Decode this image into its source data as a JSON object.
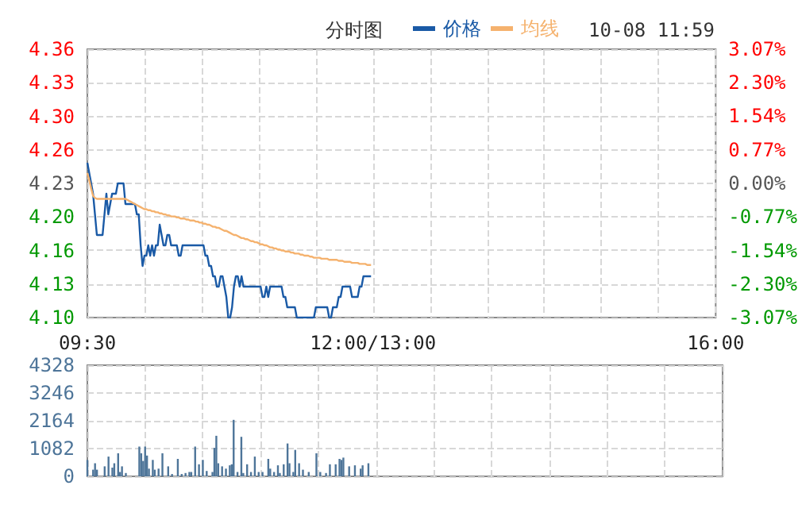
{
  "chart_data": [
    {
      "type": "line",
      "title": "分时图",
      "annotations": [
        "10-08 11:59"
      ],
      "legend": "top",
      "grid": true,
      "categories": [
        "09:30",
        null,
        null,
        null,
        null,
        null,
        null,
        null,
        null,
        null,
        null,
        null,
        null,
        null,
        null,
        null,
        null,
        null,
        null,
        null,
        null,
        null,
        null,
        null,
        null,
        null,
        null,
        null,
        null,
        null,
        null,
        null,
        null,
        null,
        null,
        null,
        null,
        null,
        null,
        null,
        null,
        null,
        null,
        null,
        null,
        null,
        null,
        null,
        null,
        null,
        null,
        null,
        null,
        null,
        null,
        null,
        null,
        null,
        null,
        null,
        null,
        null,
        null,
        null,
        null,
        null,
        null,
        null,
        null,
        null,
        null,
        null,
        null,
        null,
        null,
        null,
        null,
        null,
        null,
        null,
        null,
        null,
        null,
        null,
        null,
        null,
        null,
        null,
        null,
        null,
        null,
        null,
        null,
        null,
        null,
        null,
        null,
        null,
        null,
        null,
        null,
        null,
        null,
        null,
        null,
        null,
        null,
        null,
        null,
        null,
        null,
        null,
        null,
        null,
        null,
        null,
        null,
        null,
        null,
        null,
        null,
        null,
        null,
        null,
        null,
        null,
        null,
        null,
        null,
        null,
        null,
        null,
        null,
        null,
        null,
        null,
        null,
        null,
        null,
        null,
        null,
        null,
        null,
        null,
        null,
        null,
        null,
        null,
        null,
        null,
        "12:00/13:00",
        null,
        null,
        null,
        null,
        null,
        null,
        null,
        null,
        null,
        null,
        null,
        null,
        null,
        null,
        null,
        null,
        null,
        null,
        null,
        null,
        null,
        null,
        null,
        null,
        null,
        null,
        null,
        null,
        null,
        null,
        null,
        null,
        null,
        null,
        null,
        null,
        null,
        null,
        null,
        null,
        null,
        null,
        null,
        null,
        null,
        null,
        null,
        null,
        null,
        null,
        null,
        null,
        null,
        null,
        null,
        null,
        null,
        null,
        null,
        null,
        null,
        null,
        null,
        null,
        null,
        null,
        null,
        null,
        null,
        null,
        null,
        null,
        null,
        null,
        null,
        null,
        null,
        null,
        null,
        null,
        null,
        null,
        null,
        null,
        null,
        null,
        null,
        null,
        null,
        null,
        null,
        null,
        null,
        null,
        null,
        null,
        null,
        null,
        null,
        null,
        null,
        null,
        null,
        null,
        null,
        null,
        null,
        null,
        null,
        null,
        null,
        null,
        null,
        null,
        null,
        null,
        null,
        null,
        null,
        null,
        null,
        null,
        null,
        null,
        null,
        null,
        null,
        null,
        null,
        null,
        null,
        null,
        null,
        null,
        null,
        null,
        null,
        null,
        null,
        null,
        null,
        null,
        null,
        null,
        null,
        null,
        null,
        null,
        null,
        null,
        null,
        null,
        null,
        null,
        null,
        null,
        null,
        null,
        null,
        null,
        null,
        null,
        null,
        null,
        null,
        null,
        null,
        null,
        null,
        null,
        null,
        null,
        null,
        null,
        null,
        null,
        null,
        null,
        null,
        "16:00"
      ],
      "ylim": [
        4.1,
        4.36
      ],
      "yticks": [
        {
          "value": 4.1,
          "label": "4.10"
        },
        {
          "value": 4.1325,
          "label": "4.13"
        },
        {
          "value": 4.165,
          "label": "4.16"
        },
        {
          "value": 4.1975,
          "label": "4.20"
        },
        {
          "value": 4.23,
          "label": "4.23"
        },
        {
          "value": 4.2625,
          "label": "4.26"
        },
        {
          "value": 4.295,
          "label": "4.30"
        },
        {
          "value": 4.3275,
          "label": "4.33"
        },
        {
          "value": 4.36,
          "label": "4.36"
        }
      ],
      "y2lim": [
        -3.07,
        3.07
      ],
      "y2ticks": [
        {
          "value": -3.07,
          "label": "-3.07%"
        },
        {
          "value": -2.3,
          "label": "-2.30%"
        },
        {
          "value": -1.54,
          "label": "-1.54%"
        },
        {
          "value": -0.77,
          "label": "-0.77%"
        },
        {
          "value": 0,
          "label": "0.00%"
        },
        {
          "value": 0.77,
          "label": "0.77%"
        },
        {
          "value": 1.54,
          "label": "1.54%"
        },
        {
          "value": 2.3,
          "label": "2.30%"
        },
        {
          "value": 3.07,
          "label": "3.07%"
        }
      ],
      "series": [
        {
          "name": "价格",
          "color": "#1a5aa6",
          "values": [
            4.25,
            4.24,
            4.23,
            4.22,
            4.2,
            4.18,
            4.18,
            4.18,
            4.18,
            4.2,
            4.22,
            4.2,
            4.21,
            4.22,
            4.22,
            4.22,
            4.23,
            4.23,
            4.23,
            4.23,
            4.21,
            4.21,
            4.21,
            4.21,
            4.21,
            4.21,
            4.2,
            4.2,
            4.17,
            4.15,
            4.16,
            4.16,
            4.17,
            4.16,
            4.17,
            4.16,
            4.17,
            4.17,
            4.19,
            4.18,
            4.17,
            4.17,
            4.18,
            4.18,
            4.17,
            4.17,
            4.17,
            4.17,
            4.16,
            4.16,
            4.17,
            4.17,
            4.17,
            4.17,
            4.17,
            4.17,
            4.17,
            4.17,
            4.17,
            4.17,
            4.17,
            4.17,
            4.16,
            4.16,
            4.15,
            4.15,
            4.14,
            4.14,
            4.13,
            4.13,
            4.14,
            4.14,
            4.13,
            4.12,
            4.1,
            4.1,
            4.11,
            4.13,
            4.14,
            4.14,
            4.13,
            4.14,
            4.13,
            4.13,
            4.13,
            4.13,
            4.13,
            4.13,
            4.13,
            4.13,
            4.13,
            4.13,
            4.12,
            4.12,
            4.13,
            4.12,
            4.13,
            4.13,
            4.13,
            4.13,
            4.13,
            4.13,
            4.13,
            4.12,
            4.12,
            4.11,
            4.11,
            4.11,
            4.11,
            4.11,
            4.1,
            4.1,
            4.1,
            4.1,
            4.1,
            4.1,
            4.1,
            4.1,
            4.1,
            4.1,
            4.11,
            4.11,
            4.11,
            4.11,
            4.11,
            4.11,
            4.11,
            4.1,
            4.1,
            4.11,
            4.11,
            4.11,
            4.12,
            4.12,
            4.13,
            4.13,
            4.13,
            4.13,
            4.13,
            4.12,
            4.12,
            4.12,
            4.12,
            4.13,
            4.13,
            4.14,
            4.14,
            4.14,
            4.14,
            4.14,
            null,
            null,
            null,
            null,
            null,
            null,
            null,
            null,
            null,
            null,
            null,
            null,
            null,
            null,
            null,
            null,
            null,
            null,
            null,
            null,
            null,
            null,
            null,
            null,
            null,
            null,
            null,
            null,
            null,
            null,
            null,
            null,
            null,
            null,
            null,
            null,
            null,
            null,
            null,
            null,
            null,
            null,
            null,
            null,
            null,
            null,
            null,
            null,
            null,
            null,
            null,
            null,
            null,
            null,
            null,
            null,
            null,
            null,
            null,
            null,
            null,
            null,
            null,
            null,
            null,
            null,
            null,
            null,
            null,
            null,
            null,
            null,
            null,
            null,
            null,
            null,
            null,
            null,
            null,
            null,
            null,
            null,
            null,
            null,
            null,
            null,
            null,
            null,
            null,
            null,
            null,
            null,
            null,
            null,
            null,
            null,
            null,
            null,
            null,
            null,
            null,
            null,
            null,
            null,
            null,
            null,
            null,
            null,
            null,
            null,
            null,
            null,
            null,
            null,
            null,
            null,
            null,
            null,
            null,
            null,
            null,
            null,
            null,
            null,
            null,
            null,
            null,
            null,
            null,
            null,
            null,
            null,
            null,
            null,
            null,
            null,
            null,
            null,
            null,
            null,
            null,
            null,
            null,
            null,
            null,
            null,
            null,
            null,
            null,
            null,
            null,
            null,
            null,
            null,
            null,
            null,
            null,
            null,
            null,
            null,
            null,
            null,
            null,
            null,
            null,
            null,
            null,
            null,
            null,
            null,
            null,
            null,
            null,
            null,
            null,
            null,
            null,
            null,
            null,
            null,
            null
          ]
        },
        {
          "name": "均线",
          "color": "#f5b26e",
          "values": [
            4.24,
            4.233,
            4.225,
            4.218,
            4.216,
            4.215,
            4.215,
            4.215,
            4.215,
            4.215,
            4.215,
            4.215,
            4.215,
            4.215,
            4.215,
            4.215,
            4.215,
            4.215,
            4.215,
            4.215,
            4.215,
            4.214,
            4.213,
            4.212,
            4.211,
            4.21,
            4.209,
            4.208,
            4.207,
            4.206,
            4.205,
            4.205,
            4.204,
            4.204,
            4.203,
            4.203,
            4.202,
            4.202,
            4.201,
            4.201,
            4.2,
            4.2,
            4.199,
            4.199,
            4.198,
            4.198,
            4.198,
            4.197,
            4.197,
            4.196,
            4.196,
            4.196,
            4.195,
            4.195,
            4.194,
            4.194,
            4.194,
            4.193,
            4.193,
            4.192,
            4.192,
            4.191,
            4.191,
            4.19,
            4.19,
            4.189,
            4.188,
            4.188,
            4.187,
            4.187,
            4.186,
            4.185,
            4.184,
            4.184,
            4.183,
            4.182,
            4.181,
            4.18,
            4.18,
            4.179,
            4.178,
            4.177,
            4.177,
            4.176,
            4.176,
            4.175,
            4.174,
            4.174,
            4.173,
            4.173,
            4.172,
            4.171,
            4.171,
            4.17,
            4.17,
            4.169,
            4.168,
            4.168,
            4.167,
            4.167,
            4.166,
            4.166,
            4.165,
            4.165,
            4.164,
            4.164,
            4.164,
            4.163,
            4.163,
            4.162,
            4.162,
            4.162,
            4.161,
            4.161,
            4.16,
            4.16,
            4.16,
            4.159,
            4.159,
            4.158,
            4.158,
            4.158,
            4.158,
            4.157,
            4.157,
            4.157,
            4.157,
            4.156,
            4.156,
            4.156,
            4.156,
            4.156,
            4.155,
            4.155,
            4.155,
            4.154,
            4.154,
            4.154,
            4.154,
            4.153,
            4.153,
            4.153,
            4.153,
            4.152,
            4.152,
            4.152,
            4.152,
            4.151,
            4.151,
            4.151,
            null,
            null,
            null,
            null,
            null,
            null,
            null,
            null,
            null,
            null,
            null,
            null,
            null,
            null,
            null,
            null,
            null,
            null,
            null,
            null,
            null,
            null,
            null,
            null,
            null,
            null,
            null,
            null,
            null,
            null,
            null,
            null,
            null,
            null,
            null,
            null,
            null,
            null,
            null,
            null,
            null,
            null,
            null,
            null,
            null,
            null,
            null,
            null,
            null,
            null,
            null,
            null,
            null,
            null,
            null,
            null,
            null,
            null,
            null,
            null,
            null,
            null,
            null,
            null,
            null,
            null,
            null,
            null,
            null,
            null,
            null,
            null,
            null,
            null,
            null,
            null,
            null,
            null,
            null,
            null,
            null,
            null,
            null,
            null,
            null,
            null,
            null,
            null,
            null,
            null,
            null,
            null,
            null,
            null,
            null,
            null,
            null,
            null,
            null,
            null,
            null,
            null,
            null,
            null,
            null,
            null,
            null,
            null,
            null,
            null,
            null,
            null,
            null,
            null,
            null,
            null,
            null,
            null,
            null,
            null,
            null,
            null,
            null,
            null,
            null,
            null,
            null,
            null,
            null,
            null,
            null,
            null,
            null,
            null,
            null,
            null,
            null,
            null,
            null,
            null,
            null,
            null,
            null,
            null,
            null,
            null,
            null,
            null,
            null,
            null,
            null,
            null,
            null,
            null,
            null,
            null,
            null,
            null,
            null,
            null,
            null,
            null,
            null,
            null,
            null,
            null,
            null,
            null,
            null,
            null,
            null,
            null,
            null,
            null,
            null,
            null,
            null,
            null,
            null,
            null,
            null
          ]
        }
      ]
    },
    {
      "type": "bar",
      "tick_labels": "y",
      "grid": true,
      "categories": [
        null,
        null,
        null,
        null,
        null,
        null,
        null,
        null,
        null,
        null,
        null,
        null,
        null,
        null,
        null,
        null,
        null,
        null,
        null,
        null,
        null,
        null,
        null,
        null,
        null,
        null,
        null,
        null,
        null,
        null,
        null,
        null,
        null,
        null,
        null,
        null,
        null,
        null,
        null,
        null,
        null,
        null,
        null,
        null,
        null,
        null,
        null,
        null,
        null,
        null,
        null,
        null,
        null,
        null,
        null,
        null,
        null,
        null,
        null,
        null,
        null,
        null,
        null,
        null,
        null,
        null,
        null,
        null,
        null,
        null,
        null,
        null,
        null,
        null,
        null,
        null,
        null,
        null,
        null,
        null,
        null,
        null,
        null,
        null,
        null,
        null,
        null,
        null,
        null,
        null,
        null,
        null,
        null,
        null,
        null,
        null,
        null,
        null,
        null,
        null,
        null,
        null,
        null,
        null,
        null,
        null,
        null,
        null,
        null,
        null,
        null,
        null,
        null,
        null,
        null,
        null,
        null,
        null,
        null,
        null,
        null,
        null,
        null,
        null,
        null,
        null,
        null,
        null,
        null,
        null,
        null,
        null,
        null,
        null,
        null,
        null,
        null,
        null,
        null,
        null,
        null,
        null,
        null,
        null,
        null,
        null,
        null,
        null,
        null,
        null,
        null,
        null,
        null,
        null,
        null,
        null,
        null,
        null,
        null,
        null,
        null,
        null,
        null,
        null,
        null,
        null,
        null,
        null,
        null,
        null,
        null,
        null,
        null,
        null,
        null,
        null,
        null,
        null,
        null,
        null,
        null,
        null,
        null,
        null,
        null,
        null,
        null,
        null,
        null,
        null,
        null,
        null,
        null,
        null,
        null,
        null,
        null,
        null,
        null,
        null,
        null,
        null,
        null,
        null,
        null,
        null,
        null,
        null,
        null,
        null,
        null,
        null,
        null,
        null,
        null,
        null,
        null,
        null,
        null,
        null,
        null,
        null,
        null,
        null,
        null,
        null,
        null,
        null,
        null,
        null,
        null,
        null,
        null,
        null,
        null,
        null,
        null,
        null,
        null,
        null,
        null,
        null,
        null,
        null,
        null,
        null,
        null,
        null,
        null,
        null,
        null,
        null,
        null,
        null,
        null,
        null,
        null,
        null,
        null,
        null,
        null,
        null,
        null,
        null,
        null,
        null,
        null,
        null,
        null,
        null,
        null,
        null,
        null,
        null,
        null,
        null,
        null,
        null,
        null,
        null,
        null,
        null,
        null,
        null,
        null,
        null,
        null,
        null,
        null,
        null,
        null,
        null,
        null,
        null,
        null,
        null,
        null,
        null,
        null,
        null,
        null,
        null,
        null,
        null,
        null,
        null,
        null,
        null,
        null,
        null,
        null,
        null,
        null,
        null,
        null,
        null,
        null,
        null,
        null,
        null,
        null,
        null,
        null,
        null,
        null,
        null,
        null,
        null,
        null,
        null,
        null
      ],
      "ylim": [
        0,
        4328
      ],
      "yticks": [
        0,
        1082,
        2164,
        3246,
        4328
      ],
      "series": [
        {
          "color": "#4e7599",
          "values": [
            640,
            null,
            null,
            260,
            510,
            260,
            null,
            null,
            null,
            390,
            null,
            770,
            null,
            340,
            510,
            null,
            900,
            170,
            390,
            null,
            130,
            null,
            null,
            null,
            null,
            null,
            null,
            1160,
            900,
            600,
            1160,
            810,
            300,
            null,
            640,
            260,
            null,
            300,
            null,
            900,
            null,
            null,
            390,
            null,
            90,
            null,
            null,
            680,
            null,
            90,
            null,
            130,
            null,
            170,
            170,
            null,
            1160,
            null,
            470,
            null,
            640,
            null,
            210,
            null,
            null,
            170,
            1110,
            1580,
            510,
            null,
            390,
            null,
            300,
            null,
            430,
            470,
            2200,
            null,
            170,
            null,
            1540,
            130,
            null,
            470,
            null,
            170,
            null,
            770,
            null,
            170,
            null,
            170,
            null,
            null,
            680,
            300,
            null,
            170,
            null,
            430,
            130,
            null,
            470,
            null,
            1280,
            510,
            null,
            170,
            1030,
            null,
            510,
            null,
            260,
            null,
            null,
            170,
            null,
            null,
            null,
            900,
            null,
            170,
            null,
            null,
            130,
            null,
            470,
            null,
            null,
            470,
            null,
            680,
            640,
            730,
            null,
            null,
            390,
            null,
            null,
            430,
            null,
            null,
            300,
            430,
            null,
            null,
            510,
            null,
            null,
            null,
            null,
            null,
            null,
            null,
            null,
            null,
            null,
            null,
            null,
            null,
            null,
            null,
            null,
            null,
            null,
            null,
            null,
            null,
            null,
            null,
            null,
            null,
            null,
            null,
            null,
            null,
            null,
            null,
            null,
            null,
            null,
            null,
            null,
            null,
            null,
            null,
            null,
            null,
            null,
            null,
            null,
            null,
            null,
            null,
            null,
            null,
            null,
            null,
            null,
            null,
            null,
            null,
            null,
            null,
            null,
            null,
            null,
            null,
            null,
            null,
            null,
            null,
            null,
            null,
            null,
            null,
            null,
            null,
            null,
            null,
            null,
            null,
            null,
            null,
            null,
            null,
            null,
            null,
            null,
            null,
            null,
            null,
            null,
            null,
            null,
            null,
            null,
            null,
            null,
            null,
            null,
            null,
            null,
            null,
            null,
            null,
            null,
            null,
            null,
            null,
            null,
            null,
            null,
            null,
            null,
            null,
            null,
            null,
            null,
            null,
            null,
            null,
            null,
            null,
            null,
            null,
            null,
            null,
            null,
            null,
            null,
            null,
            null,
            null,
            null,
            null,
            null,
            null,
            null,
            null,
            null,
            null,
            null,
            null,
            null,
            null,
            null,
            null,
            null,
            null,
            null,
            null,
            null,
            null,
            null,
            null,
            null,
            null,
            null,
            null,
            null,
            null,
            null,
            null,
            null,
            null,
            null,
            null,
            null,
            null,
            null,
            null,
            null,
            null,
            null,
            null,
            null,
            null,
            null,
            null,
            null,
            null,
            null,
            null,
            null,
            null,
            null,
            null,
            null,
            null,
            null
          ]
        }
      ]
    }
  ]
}
